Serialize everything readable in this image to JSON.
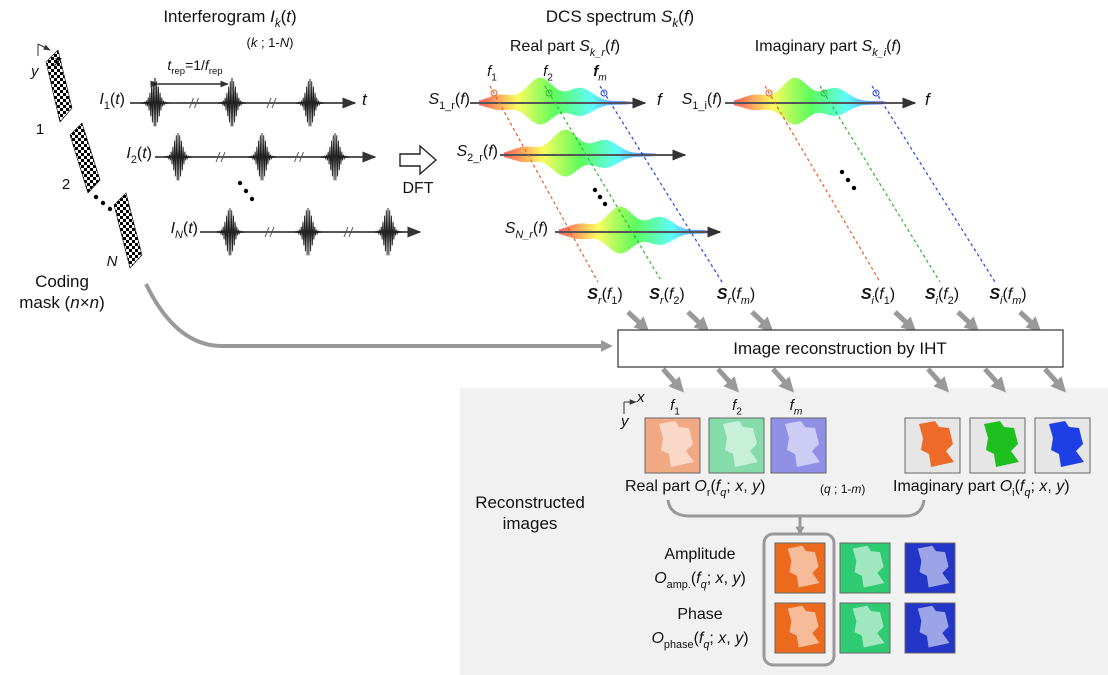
{
  "interferogram": {
    "title": [
      "Interferogram ",
      "I",
      "k",
      "(",
      "t",
      ")"
    ],
    "range": [
      "(",
      "k",
      " ; 1-",
      "N",
      ")"
    ],
    "period": [
      "t",
      "rep",
      "=1/",
      "f",
      "rep"
    ],
    "signals": [
      [
        "I",
        "1",
        "(",
        "t",
        ")"
      ],
      [
        "I",
        "2",
        "(",
        "t",
        ")"
      ],
      [
        "I",
        "N",
        "(",
        "t",
        ")"
      ]
    ],
    "time_axis": "t"
  },
  "mask": {
    "axis_x": "x",
    "axis_y": "y",
    "numbers": [
      "1",
      "2",
      "N"
    ],
    "label": "Coding",
    "label_size": [
      "mask (",
      "n",
      "×",
      "n",
      ")"
    ]
  },
  "dft": "DFT",
  "spectrum": {
    "title": [
      "DCS spectrum ",
      "S",
      "k",
      "(",
      "f",
      ")"
    ],
    "real_title": [
      "Real part ",
      "S",
      "k_r",
      "(",
      "f",
      ")"
    ],
    "imag_title": [
      "Imaginary part ",
      "S",
      "k_i",
      "(",
      "f",
      ")"
    ],
    "freq_markers": [
      [
        "f",
        "1"
      ],
      [
        "f",
        "2"
      ],
      [
        "f",
        "m"
      ]
    ],
    "axis_labels": [
      "f",
      "f"
    ],
    "real_rows": [
      [
        "S",
        "1_r",
        "(",
        "f",
        ")"
      ],
      [
        "S",
        "2_r",
        "(",
        "f",
        ")"
      ],
      [
        "S",
        "N_r",
        "(",
        "f",
        ")"
      ]
    ],
    "imag_rows": [
      [
        "S",
        "1_i",
        "(",
        "f",
        ")"
      ]
    ],
    "real_outputs": [
      [
        "S",
        "r",
        "(",
        "f",
        "1",
        ")"
      ],
      [
        "S",
        "r",
        "(",
        "f",
        "2",
        ")"
      ],
      [
        "S",
        "r",
        "(",
        "f",
        "m",
        ")"
      ]
    ],
    "imag_outputs": [
      [
        "S",
        "i",
        "(",
        "f",
        "1",
        ")"
      ],
      [
        "S",
        "i",
        "(",
        "f",
        "2",
        ")"
      ],
      [
        "S",
        "i",
        "(",
        "f",
        "m",
        ")"
      ]
    ]
  },
  "reconstruction": {
    "label": "Image reconstruction by IHT"
  },
  "reconstructed": {
    "axis_x": "x",
    "axis_y": "y",
    "freq_labels": [
      [
        "f",
        "1"
      ],
      [
        "f",
        "2"
      ],
      [
        "f",
        "m"
      ]
    ],
    "real_caption": [
      "Real part ",
      "O",
      "r",
      "(",
      "f",
      "q",
      "; ",
      "x",
      ", ",
      "y",
      ")"
    ],
    "range": [
      "(",
      "q",
      " ; 1-",
      "m",
      ")"
    ],
    "imag_caption": [
      "Imaginary part ",
      "O",
      "i",
      "(",
      "f",
      "q",
      "; ",
      "x",
      ", ",
      "y",
      ")"
    ],
    "title": [
      "Reconstructed",
      "images"
    ],
    "amplitude": {
      "label": "Amplitude",
      "formula": [
        "O",
        "amp.",
        "(",
        "f",
        "q",
        "; ",
        "x",
        ", ",
        "y",
        ")"
      ]
    },
    "phase": {
      "label": "Phase",
      "formula": [
        "O",
        "phase",
        "(",
        "f",
        "q",
        "; ",
        "x",
        ", ",
        "y",
        ")"
      ]
    }
  }
}
